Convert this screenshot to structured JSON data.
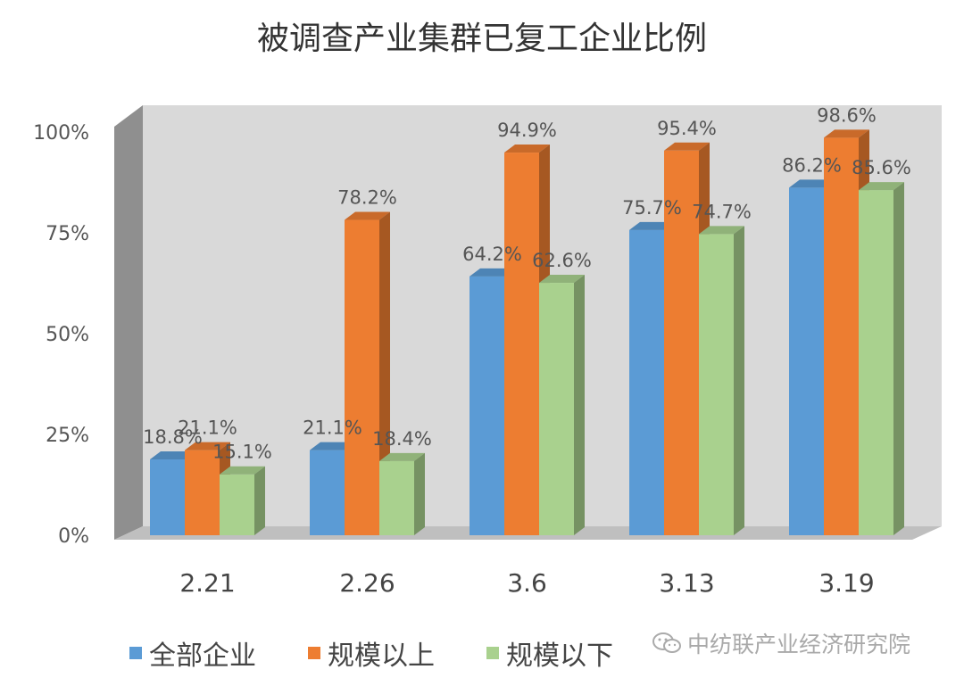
{
  "chart_data": {
    "type": "bar",
    "title": "被调查产业集群已复工企业比例",
    "categories": [
      "2.21",
      "2.26",
      "3.6",
      "3.13",
      "3.19"
    ],
    "series": [
      {
        "name": "全部企业",
        "color": "#5b9bd5",
        "values": [
          18.8,
          21.1,
          64.2,
          75.7,
          86.2
        ]
      },
      {
        "name": "规模以上",
        "color": "#ed7d31",
        "values": [
          21.1,
          78.2,
          94.9,
          95.4,
          98.6
        ]
      },
      {
        "name": "规模以下",
        "color": "#a9d18e",
        "values": [
          15.1,
          18.4,
          62.6,
          74.7,
          85.6
        ]
      }
    ],
    "data_labels": [
      [
        "18.8%",
        "21.1%",
        "64.2%",
        "75.7%",
        "86.2%"
      ],
      [
        "21.1%",
        "78.2%",
        "94.9%",
        "95.4%",
        "98.6%"
      ],
      [
        "15.1%",
        "18.4%",
        "62.6%",
        "74.7%",
        "85.6%"
      ]
    ],
    "yticks": [
      "0%",
      "25%",
      "50%",
      "75%",
      "100%"
    ],
    "ylim": [
      0,
      100
    ],
    "style": "3d",
    "grid": false,
    "legend_position": "bottom"
  },
  "watermark": "中纺联产业经济研究院",
  "icons": {
    "watermark": "wechat-icon"
  }
}
